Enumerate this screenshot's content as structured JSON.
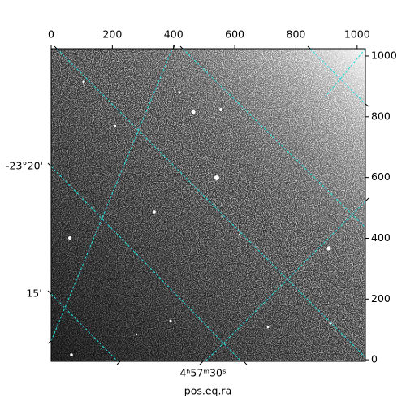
{
  "chart_data": {
    "type": "image",
    "xlabel": "pos.eq.ra",
    "xlim": [
      0,
      1027
    ],
    "xticks": [
      0,
      200,
      400,
      600,
      800,
      1000
    ],
    "ylim": [
      -5,
      1024
    ],
    "yticks": [
      0,
      200,
      400,
      600,
      800,
      1000
    ],
    "world_y_labels": [
      "-23°20'",
      "15'"
    ],
    "world_x_labels": [
      "4ʰ57ᵐ30ˢ"
    ],
    "grid_color": "#22dddd"
  }
}
